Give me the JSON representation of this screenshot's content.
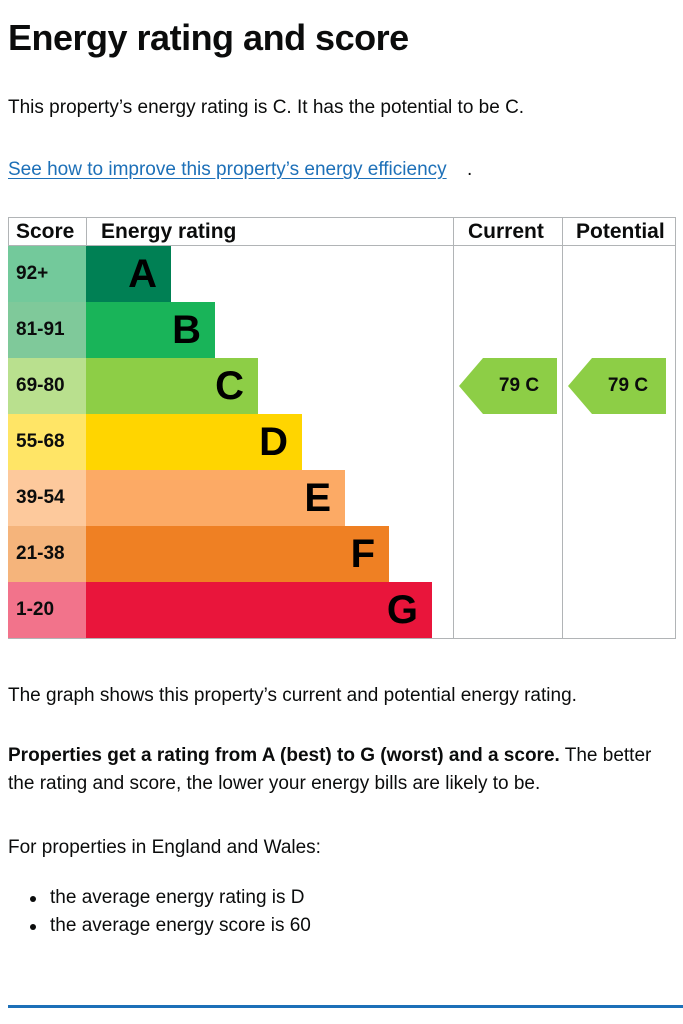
{
  "page": {
    "title": "Energy rating and score",
    "intro": "This property’s energy rating is C. It has the potential to be C.",
    "improve_link": "See how to improve this property’s energy efficiency",
    "improve_link_suffix": "."
  },
  "chart_data": {
    "type": "table",
    "headers": {
      "score": "Score",
      "rating": "Energy rating",
      "current": "Current",
      "potential": "Potential"
    },
    "bands": [
      {
        "letter": "A",
        "range": "92+",
        "color": "#008054",
        "score_color": "#73c99b"
      },
      {
        "letter": "B",
        "range": "81-91",
        "color": "#19b459",
        "score_color": "#7fc99a"
      },
      {
        "letter": "C",
        "range": "69-80",
        "color": "#8dce46",
        "score_color": "#b9e08e"
      },
      {
        "letter": "D",
        "range": "55-68",
        "color": "#ffd500",
        "score_color": "#ffe566"
      },
      {
        "letter": "E",
        "range": "39-54",
        "color": "#fcaa65",
        "score_color": "#fdc99c"
      },
      {
        "letter": "F",
        "range": "21-38",
        "color": "#ef8023",
        "score_color": "#f5b47b"
      },
      {
        "letter": "G",
        "range": "1-20",
        "color": "#e9153b",
        "score_color": "#f2738b"
      }
    ],
    "current": {
      "label": "79 C",
      "score": 79,
      "band": "C",
      "color": "#8dce46"
    },
    "potential": {
      "label": "79 C",
      "score": 79,
      "band": "C",
      "color": "#8dce46"
    }
  },
  "content": {
    "graph_note": "The graph shows this property’s current and potential energy rating.",
    "rating_bold": "Properties get a rating from A (best) to G (worst) and a score.",
    "rating_rest": " The better the rating and score, the lower your energy bills are likely to be.",
    "region_intro": "For properties in England and Wales:",
    "bullets": [
      "the average energy rating is D",
      "the average energy score is 60"
    ]
  }
}
